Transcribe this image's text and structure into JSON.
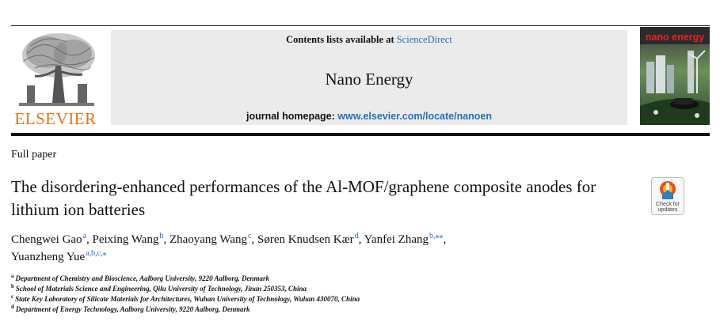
{
  "header": {
    "contents_prefix": "Contents lists available at ",
    "contents_link": "ScienceDirect",
    "journal_title": "Nano Energy",
    "homepage_prefix": "journal homepage: ",
    "homepage_link": "www.elsevier.com/locate/nanoen",
    "publisher_logo_text": "ELSEVIER",
    "cover_title": "nano energy"
  },
  "article": {
    "type": "Full paper",
    "title": "The disordering-enhanced performances of the Al-MOF/graphene composite anodes for lithium ion batteries",
    "check_updates": {
      "line1": "Check for",
      "line2": "updates"
    }
  },
  "authors": [
    {
      "name": "Chengwei Gao",
      "sup": "a"
    },
    {
      "name": "Peixing Wang",
      "sup": "b"
    },
    {
      "name": "Zhaoyang Wang",
      "sup": "c"
    },
    {
      "name": "Søren Knudsen Kær",
      "sup": "d"
    },
    {
      "name": "Yanfei Zhang",
      "sup": "b,⁎⁎"
    },
    {
      "name": "Yuanzheng Yue",
      "sup": "a,b,c,⁎"
    }
  ],
  "affiliations": [
    {
      "label": "a",
      "text": "Department of Chemistry and Bioscience, Aalborg University, 9220 Aalborg, Denmark"
    },
    {
      "label": "b",
      "text": "School of Materials Science and Engineering, Qilu University of Technology, Jinan 250353, China"
    },
    {
      "label": "c",
      "text": "State Key Laboratory of Silicate Materials for Architectures, Wuhan University of Technology, Wuhan 430070, China"
    },
    {
      "label": "d",
      "text": "Department of Energy Technology, Aalborg University, 9220 Aalborg, Denmark"
    }
  ],
  "colors": {
    "link": "#2a6ebb",
    "elsevier_orange": "#e9711c",
    "panel_grey": "#ebebeb"
  },
  "icons": [
    "elsevier-tree-logo",
    "journal-cover-image",
    "check-for-updates-icon"
  ]
}
